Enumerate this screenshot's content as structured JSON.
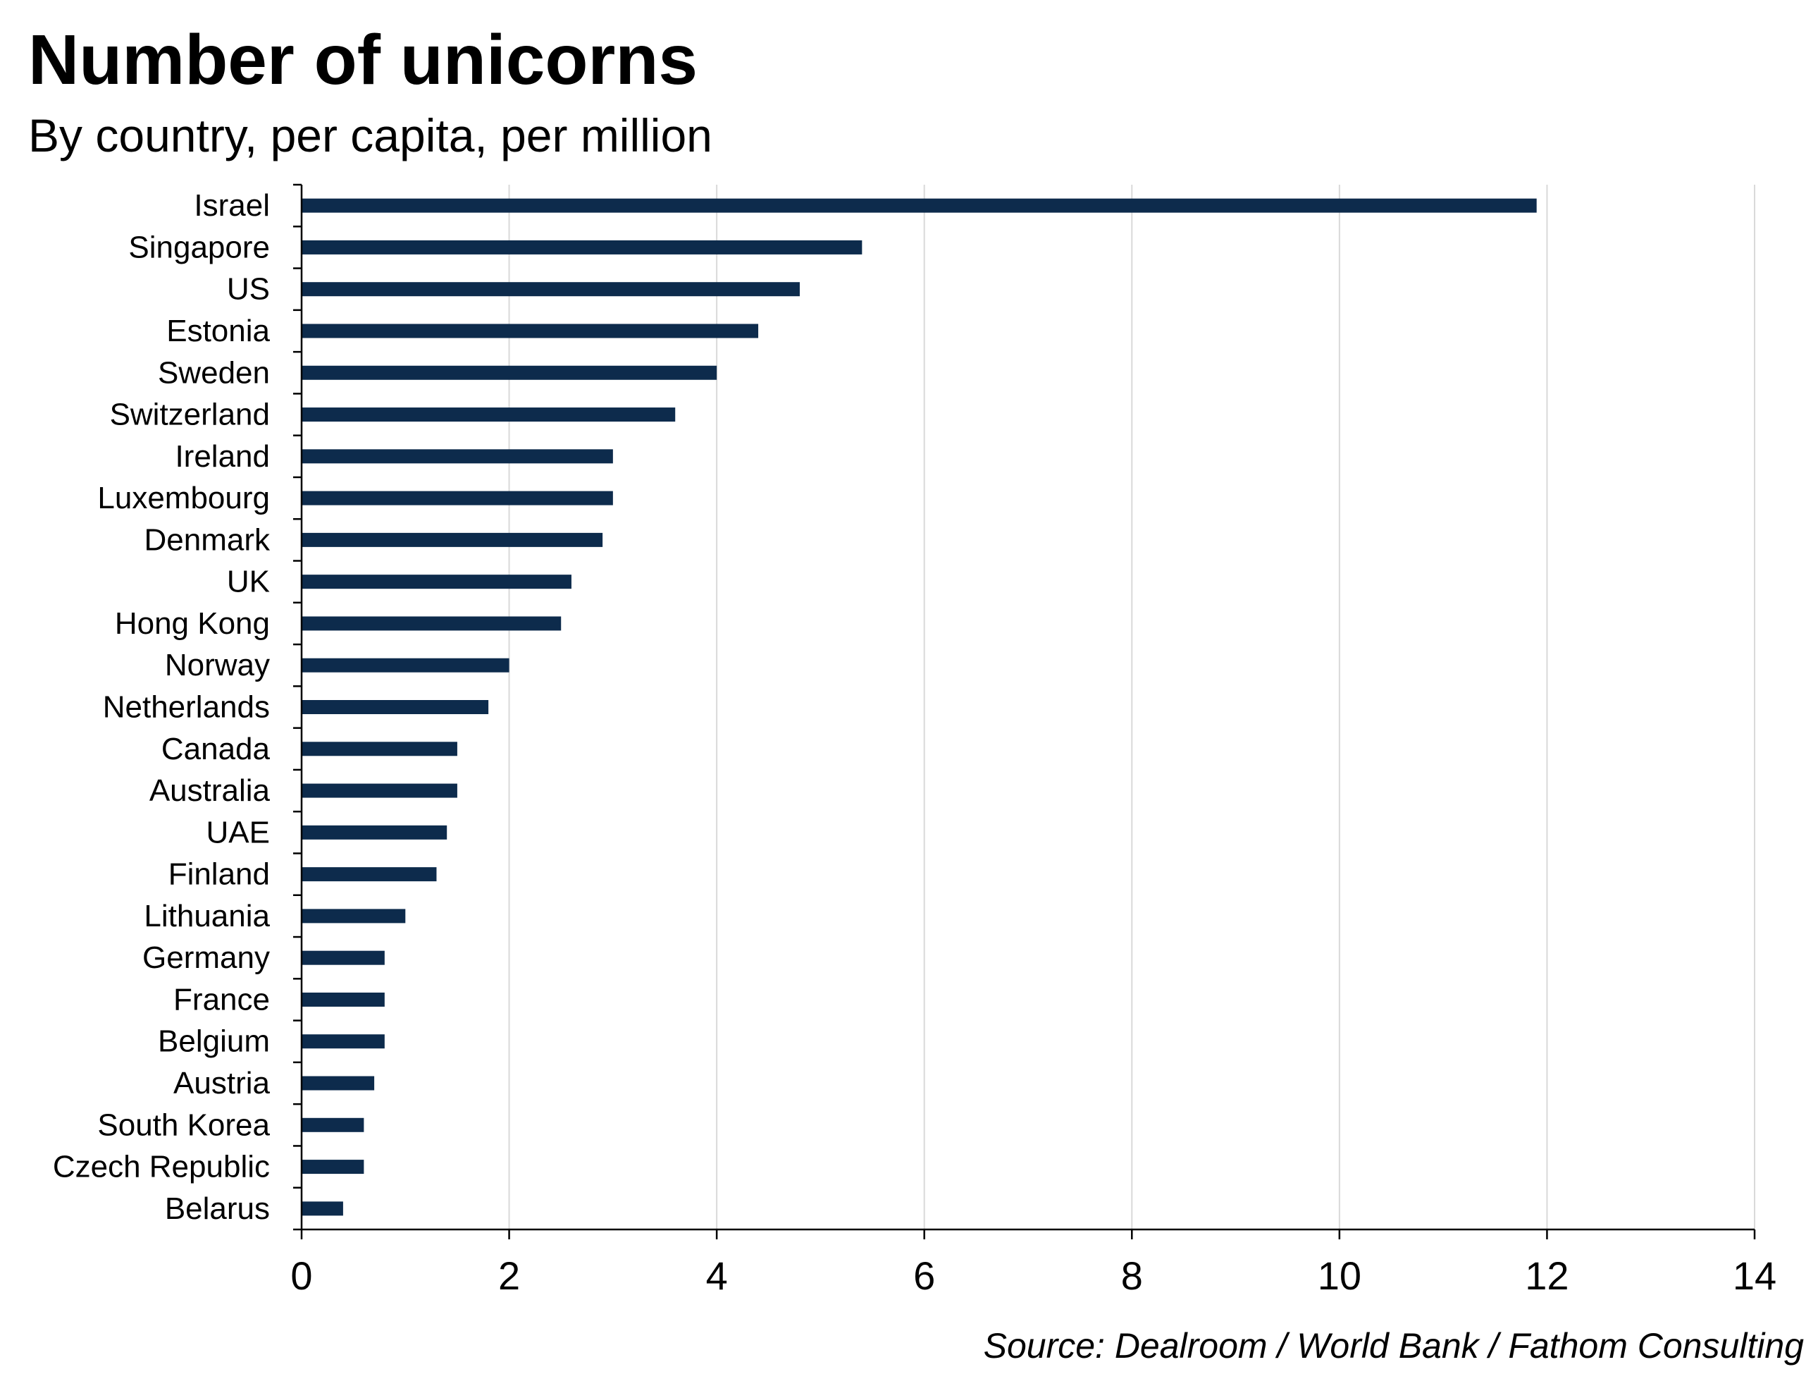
{
  "chart_data": {
    "type": "bar",
    "orientation": "horizontal",
    "title": "Number of unicorns",
    "subtitle": "By country, per capita, per million",
    "source": "Source: Dealroom / World Bank / Fathom Consulting",
    "categories": [
      "Israel",
      "Singapore",
      "US",
      "Estonia",
      "Sweden",
      "Switzerland",
      "Ireland",
      "Luxembourg",
      "Denmark",
      "UK",
      "Hong Kong",
      "Norway",
      "Netherlands",
      "Canada",
      "Australia",
      "UAE",
      "Finland",
      "Lithuania",
      "Germany",
      "France",
      "Belgium",
      "Austria",
      "South Korea",
      "Czech Republic",
      "Belarus"
    ],
    "values": [
      11.9,
      5.4,
      4.8,
      4.4,
      4.0,
      3.6,
      3.0,
      3.0,
      2.9,
      2.6,
      2.5,
      2.0,
      1.8,
      1.5,
      1.5,
      1.4,
      1.3,
      1.0,
      0.8,
      0.8,
      0.8,
      0.7,
      0.6,
      0.6,
      0.4
    ],
    "xlim": [
      0,
      14
    ],
    "xticks": [
      0,
      2,
      4,
      6,
      8,
      10,
      12,
      14
    ],
    "grid": "vertical",
    "legend": "none",
    "bar_color": "#0d2b4c",
    "grid_color": "#d9d9d9",
    "axis_color": "#000000"
  }
}
